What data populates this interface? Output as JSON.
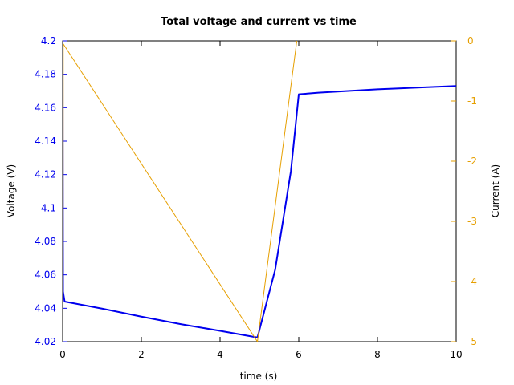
{
  "chart_data": {
    "type": "line",
    "title": "Total voltage and current vs time",
    "xlabel": "time (s)",
    "ylabel": "Voltage (V)",
    "y2label": "Current (A)",
    "xlim": [
      0,
      10
    ],
    "ylim": [
      4.02,
      4.2
    ],
    "y2lim": [
      -5,
      0
    ],
    "xticks": [
      "0",
      "2",
      "4",
      "6",
      "8",
      "10"
    ],
    "yticks": [
      "4.02",
      "4.04",
      "4.06",
      "4.08",
      "4.1",
      "4.12",
      "4.14",
      "4.16",
      "4.18",
      "4.2"
    ],
    "y2ticks": [
      "-5",
      "-4",
      "-3",
      "-2",
      "-1",
      "0"
    ],
    "grid": false,
    "colors": {
      "voltage": "#0000ee",
      "current": "#e69f00",
      "left_axis_text": "#0000ee",
      "right_axis_text": "#e69f00"
    },
    "series": [
      {
        "axis": "left",
        "x": [
          0,
          0.01,
          0.05,
          1,
          2,
          3,
          4,
          4.95,
          5.4,
          5.8,
          6.0,
          6.5,
          8,
          10
        ],
        "y": [
          4.193,
          4.05,
          4.044,
          4.0398,
          4.035,
          4.0305,
          4.0265,
          4.0225,
          4.063,
          4.122,
          4.168,
          4.169,
          4.171,
          4.173
        ]
      },
      {
        "axis": "right",
        "x": [
          0.01,
          0.015,
          4.95,
          5.95
        ],
        "y": [
          -5,
          -0.05,
          -5,
          0
        ]
      }
    ]
  }
}
